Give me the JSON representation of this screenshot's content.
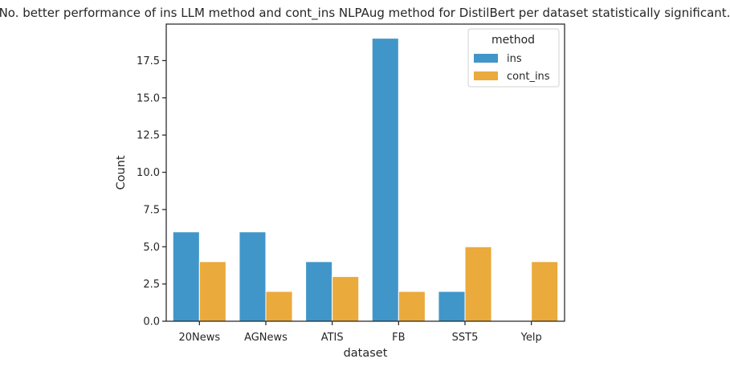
{
  "chart_data": {
    "type": "bar",
    "title": "No. better performance of ins LLM method and cont_ins NLPAug method for DistilBert per dataset statistically significant.",
    "xlabel": "dataset",
    "ylabel": "Count",
    "categories": [
      "20News",
      "AGNews",
      "ATIS",
      "FB",
      "SST5",
      "Yelp"
    ],
    "series": [
      {
        "name": "ins",
        "values": [
          6,
          6,
          4,
          19,
          2,
          0
        ],
        "color": "#4196c9"
      },
      {
        "name": "cont_ins",
        "values": [
          4,
          2,
          3,
          2,
          5,
          4
        ],
        "color": "#eaaa3c"
      }
    ],
    "ylim": [
      0,
      19.95
    ],
    "yticks": [
      0.0,
      2.5,
      5.0,
      7.5,
      10.0,
      12.5,
      15.0,
      17.5
    ],
    "ytick_labels": [
      "0.0",
      "2.5",
      "5.0",
      "7.5",
      "10.0",
      "12.5",
      "15.0",
      "17.5"
    ],
    "legend": {
      "title": "method",
      "position": "top-right"
    },
    "grid": false
  }
}
